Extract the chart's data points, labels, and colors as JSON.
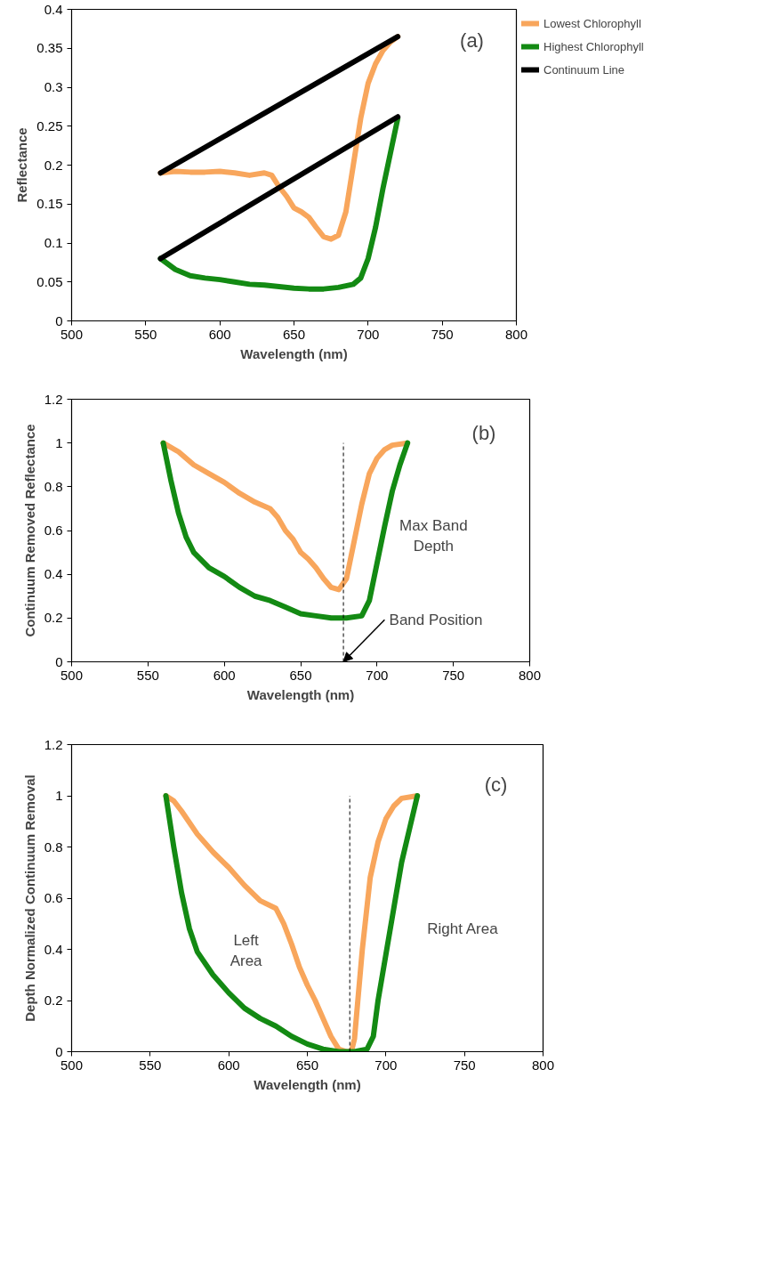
{
  "chart_data": [
    {
      "type": "line",
      "xlabel": "Wavelength (nm)",
      "ylabel": "Reflectance",
      "xlim": [
        500,
        800
      ],
      "ylim": [
        0,
        0.4
      ],
      "xticks": [
        500,
        550,
        600,
        650,
        700,
        750,
        800
      ],
      "yticks": [
        0,
        0.05,
        0.1,
        0.15,
        0.2,
        0.25,
        0.3,
        0.35,
        0.4
      ],
      "grid": false,
      "legend": "right",
      "line_style": "solid",
      "annotations": [
        "(a)"
      ],
      "series": [
        {
          "name": "Lowest Chlorophyll",
          "color": "#f8a65c",
          "x": [
            560,
            570,
            580,
            590,
            600,
            610,
            620,
            630,
            635,
            640,
            645,
            650,
            655,
            660,
            665,
            670,
            675,
            680,
            685,
            690,
            695,
            700,
            705,
            710,
            715,
            720
          ],
          "values": [
            0.19,
            0.192,
            0.191,
            0.191,
            0.192,
            0.19,
            0.187,
            0.19,
            0.187,
            0.172,
            0.16,
            0.145,
            0.14,
            0.133,
            0.12,
            0.108,
            0.105,
            0.11,
            0.14,
            0.2,
            0.26,
            0.305,
            0.33,
            0.347,
            0.358,
            0.365
          ]
        },
        {
          "name": "Highest Chlorophyll",
          "color": "#138a13",
          "x": [
            560,
            570,
            580,
            590,
            600,
            610,
            620,
            630,
            640,
            650,
            660,
            670,
            680,
            690,
            695,
            700,
            705,
            710,
            715,
            720
          ],
          "values": [
            0.08,
            0.066,
            0.058,
            0.055,
            0.053,
            0.05,
            0.047,
            0.046,
            0.044,
            0.042,
            0.041,
            0.041,
            0.043,
            0.047,
            0.055,
            0.08,
            0.12,
            0.17,
            0.215,
            0.26
          ]
        },
        {
          "name": "Continuum Line",
          "color": "#000000",
          "x": [
            560,
            720
          ],
          "values": [
            0.19,
            0.365
          ]
        },
        {
          "color": "#000000",
          "x": [
            560,
            720
          ],
          "values": [
            0.08,
            0.262
          ]
        }
      ]
    },
    {
      "type": "line",
      "xlabel": "Wavelength (nm)",
      "ylabel": "Continuum Removed Reflectance",
      "xlim": [
        500,
        800
      ],
      "ylim": [
        0,
        1.2
      ],
      "xticks": [
        500,
        550,
        600,
        650,
        700,
        750,
        800
      ],
      "yticks": [
        0,
        0.2,
        0.4,
        0.6,
        0.8,
        1,
        1.2
      ],
      "grid": false,
      "line_style": "solid",
      "annotations": [
        "(b)",
        "Max Band\nDepth",
        {
          "text": "Band Position",
          "x": 678,
          "y": 0
        }
      ],
      "ref_lines": [
        {
          "axis": "x",
          "value": 678,
          "color": "#000000",
          "line_style": "dashed"
        }
      ],
      "series": [
        {
          "color": "#f8a65c",
          "x": [
            560,
            570,
            580,
            590,
            600,
            610,
            620,
            630,
            635,
            640,
            645,
            650,
            655,
            660,
            665,
            670,
            675,
            680,
            685,
            690,
            695,
            700,
            705,
            710,
            720
          ],
          "values": [
            1.0,
            0.96,
            0.9,
            0.86,
            0.82,
            0.77,
            0.73,
            0.7,
            0.66,
            0.6,
            0.56,
            0.5,
            0.47,
            0.43,
            0.38,
            0.34,
            0.33,
            0.38,
            0.55,
            0.72,
            0.86,
            0.93,
            0.97,
            0.99,
            1.0
          ]
        },
        {
          "color": "#138a13",
          "x": [
            560,
            565,
            570,
            575,
            580,
            590,
            600,
            610,
            620,
            630,
            640,
            650,
            660,
            670,
            680,
            690,
            695,
            700,
            705,
            710,
            715,
            720
          ],
          "values": [
            1.0,
            0.83,
            0.68,
            0.57,
            0.5,
            0.43,
            0.39,
            0.34,
            0.3,
            0.28,
            0.25,
            0.22,
            0.21,
            0.2,
            0.2,
            0.21,
            0.28,
            0.45,
            0.62,
            0.78,
            0.9,
            1.0
          ]
        }
      ]
    },
    {
      "type": "line",
      "xlabel": "Wavelength (nm)",
      "ylabel": "Depth Normalized Continuum Removal",
      "xlim": [
        500,
        800
      ],
      "ylim": [
        0,
        1.2
      ],
      "xticks": [
        500,
        550,
        600,
        650,
        700,
        750,
        800
      ],
      "yticks": [
        0,
        0.2,
        0.4,
        0.6,
        0.8,
        1,
        1.2
      ],
      "grid": false,
      "line_style": "solid",
      "annotations": [
        "(c)",
        "Left\nArea",
        "Right Area"
      ],
      "ref_lines": [
        {
          "axis": "x",
          "value": 677,
          "color": "#000000",
          "line_style": "dashed"
        }
      ],
      "series": [
        {
          "color": "#f8a65c",
          "x": [
            560,
            565,
            570,
            580,
            590,
            600,
            610,
            620,
            630,
            635,
            640,
            645,
            650,
            655,
            660,
            665,
            670,
            675,
            678,
            680,
            685,
            690,
            695,
            700,
            705,
            710,
            720
          ],
          "values": [
            1.0,
            0.98,
            0.94,
            0.85,
            0.78,
            0.72,
            0.65,
            0.59,
            0.56,
            0.5,
            0.42,
            0.33,
            0.26,
            0.2,
            0.13,
            0.06,
            0.01,
            0.0,
            0.0,
            0.05,
            0.4,
            0.68,
            0.82,
            0.91,
            0.96,
            0.99,
            1.0
          ]
        },
        {
          "color": "#138a13",
          "x": [
            560,
            565,
            570,
            575,
            580,
            590,
            600,
            610,
            620,
            630,
            640,
            650,
            660,
            670,
            680,
            688,
            692,
            695,
            700,
            705,
            710,
            715,
            720
          ],
          "values": [
            1.0,
            0.8,
            0.62,
            0.48,
            0.39,
            0.3,
            0.23,
            0.17,
            0.13,
            0.1,
            0.06,
            0.03,
            0.01,
            0.0,
            0.0,
            0.01,
            0.06,
            0.2,
            0.38,
            0.56,
            0.74,
            0.87,
            1.0
          ]
        }
      ]
    }
  ]
}
